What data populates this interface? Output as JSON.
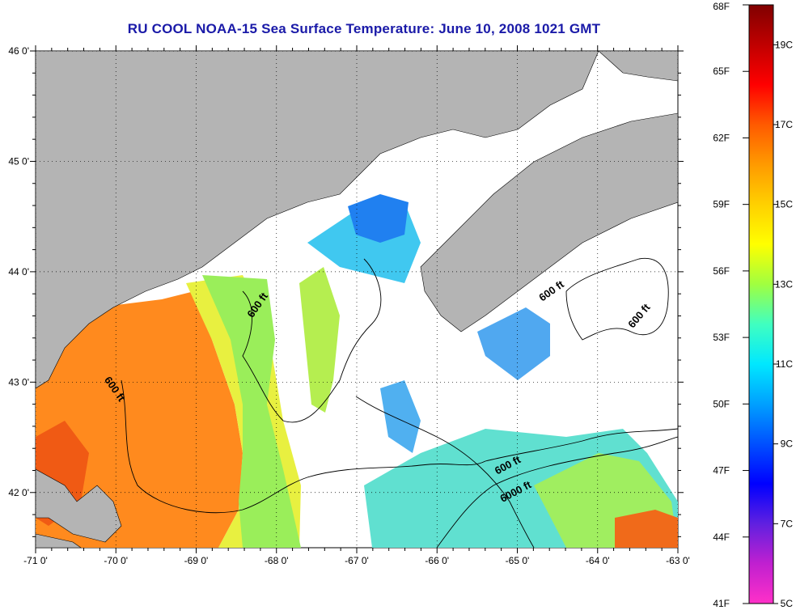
{
  "title": "RU COOL  NOAA-15  Sea Surface Temperature:  June 10, 2008 1021 GMT",
  "map": {
    "lon_range": [
      -71,
      -63
    ],
    "lat_range": [
      41.5,
      46
    ],
    "lon_ticks": [
      {
        "value": -71,
        "label": "-71 0'"
      },
      {
        "value": -70,
        "label": "-70 0'"
      },
      {
        "value": -69,
        "label": "-69 0'"
      },
      {
        "value": -68,
        "label": "-68 0'"
      },
      {
        "value": -67,
        "label": "-67 0'"
      },
      {
        "value": -66,
        "label": "-66 0'"
      },
      {
        "value": -65,
        "label": "-65 0'"
      },
      {
        "value": -64,
        "label": "-64 0'"
      },
      {
        "value": -63,
        "label": "-63 0'"
      }
    ],
    "lat_ticks": [
      {
        "value": 46,
        "label": "46 0'"
      },
      {
        "value": 45,
        "label": "45 0'"
      },
      {
        "value": 44,
        "label": "44 0'"
      },
      {
        "value": 43,
        "label": "43 0'"
      },
      {
        "value": 42,
        "label": "42 0'"
      }
    ],
    "grid": "dotted",
    "colors": {
      "land": "#b4b4b4",
      "no_data": "#ffffff",
      "contour": "#000000"
    },
    "contour_labels": [
      {
        "text": "600 ft",
        "lon": -68.2,
        "lat": 43.68
      },
      {
        "text": "600 ft",
        "lon": -70.05,
        "lat": 42.92
      },
      {
        "text": "600 ft",
        "lon": -64.55,
        "lat": 43.8
      },
      {
        "text": "600 ft",
        "lon": -63.45,
        "lat": 43.58
      },
      {
        "text": "600 ft",
        "lon": -65.1,
        "lat": 42.22
      },
      {
        "text": "6000 ft",
        "lon": -65.0,
        "lat": 41.98
      }
    ]
  },
  "colorbar": {
    "fahrenheit_labels": [
      "68F",
      "65F",
      "62F",
      "59F",
      "56F",
      "53F",
      "50F",
      "47F",
      "44F",
      "41F"
    ],
    "celsius_labels": [
      "19C",
      "17C",
      "15C",
      "13C",
      "11C",
      "9C",
      "7C",
      "5C"
    ],
    "gradient": [
      "#800000",
      "#c00000",
      "#ff0000",
      "#ff5a00",
      "#ff9a00",
      "#ffd000",
      "#ffff00",
      "#a0ff40",
      "#40ffc0",
      "#00e8ff",
      "#00a0ff",
      "#0050ff",
      "#0000ff",
      "#6020e0",
      "#c020d0",
      "#ff30c8"
    ]
  }
}
